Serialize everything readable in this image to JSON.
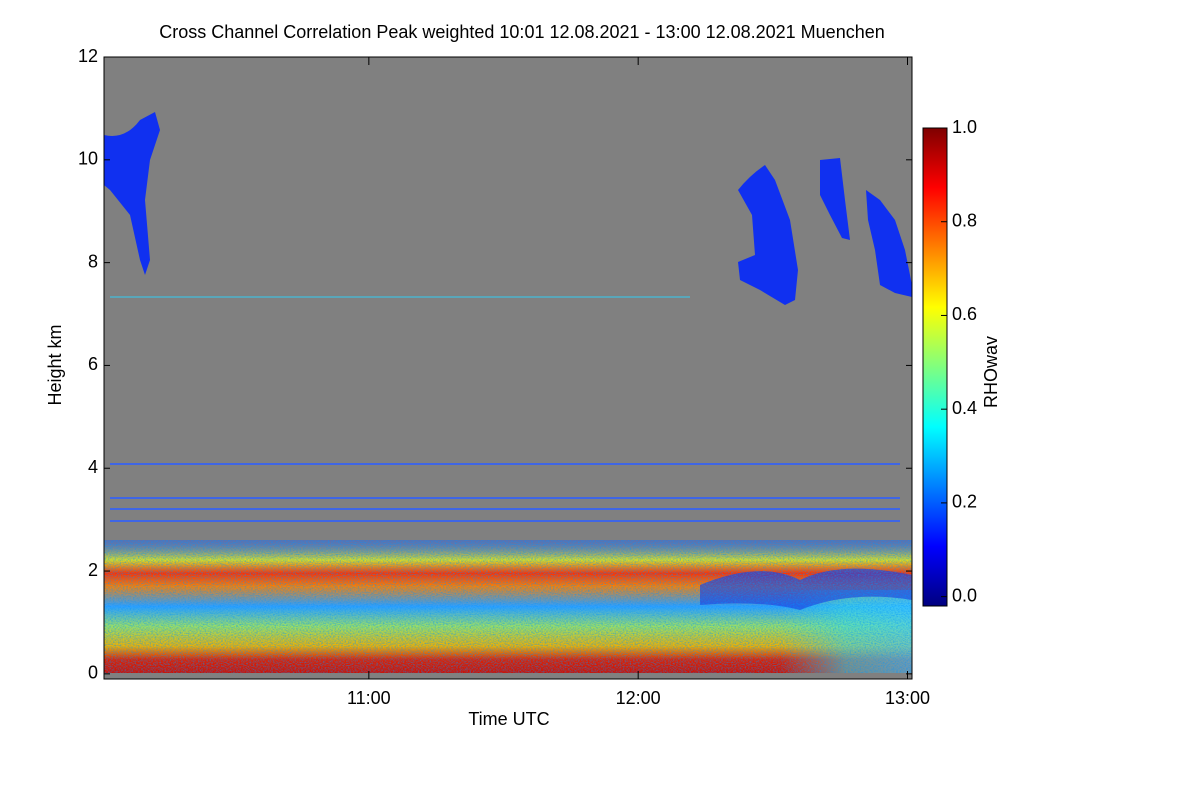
{
  "chart_data": {
    "type": "heatmap",
    "title": "Cross Channel Correlation Peak weighted   10:01 12.08.2021 - 13:00 12.08.2021 Muenchen",
    "xlabel": "Time UTC",
    "ylabel": "Height km",
    "colorbar_label": "RHOwav",
    "colormap": "jet",
    "xlim": [
      "10:01",
      "13:01"
    ],
    "xticks": [
      "11:00",
      "12:00",
      "13:00"
    ],
    "ylim": [
      -0.1,
      12
    ],
    "yticks": [
      0,
      2,
      4,
      6,
      8,
      10,
      12
    ],
    "clim": [
      -0.02,
      1.0
    ],
    "cticks": [
      {
        "value": 0,
        "label": "0.0"
      },
      0.2,
      0.4,
      0.6,
      0.8,
      {
        "value": 1,
        "label": "1.0"
      }
    ]
  }
}
